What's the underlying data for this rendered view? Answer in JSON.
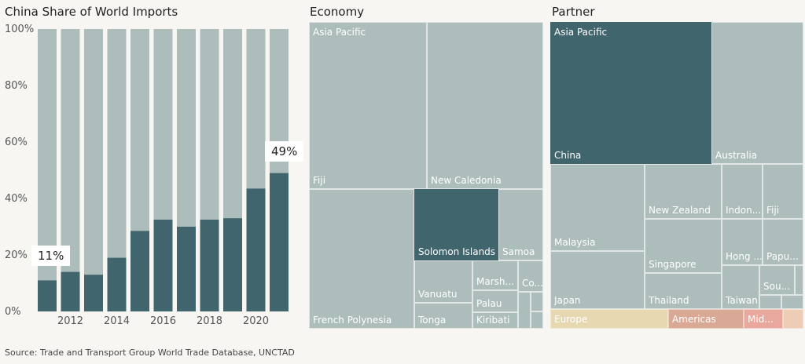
{
  "bar_title": "China Share of World Imports",
  "economy_title": "Economy",
  "partner_title": "Partner",
  "source": "Source: Trade and Transport Group World Trade Database, UNCTAD",
  "colors": {
    "dark": "#41656d",
    "light": "#adbdbb",
    "europe": "#e7d8b2",
    "americas": "#d9a996",
    "middle_east": "#e8a89d"
  },
  "chart_data": [
    {
      "type": "bar",
      "title": "China Share of World Imports",
      "x": [
        2011,
        2012,
        2013,
        2014,
        2015,
        2016,
        2017,
        2018,
        2019,
        2020,
        2021
      ],
      "values": [
        11,
        14,
        13,
        19,
        28.5,
        32.5,
        30,
        32.5,
        33,
        43.5,
        49
      ],
      "ylim": [
        0,
        100
      ],
      "yticks": [
        "0%",
        "20%",
        "40%",
        "60%",
        "80%",
        "100%"
      ],
      "xticks": [
        "2012",
        "2014",
        "2016",
        "2018",
        "2020"
      ],
      "stacked_remainder": true,
      "callouts": [
        "11%",
        "49%"
      ]
    },
    {
      "type": "treemap",
      "title": "Economy",
      "labels": [
        "Asia Pacific",
        "Fiji",
        "New Caledonia",
        "French Polynesia",
        "Solomon Islands",
        "Samoa",
        "Vanuatu",
        "Tonga",
        "Marsh...",
        "Palau",
        "Kiribati",
        "Co..."
      ],
      "highlighted": "Solomon Islands"
    },
    {
      "type": "treemap",
      "title": "Partner",
      "labels": [
        "Asia Pacific",
        "China",
        "Australia",
        "New Zealand",
        "Malaysia",
        "Singapore",
        "Japan",
        "Thailand",
        "Indon...",
        "Fiji",
        "Hong ...",
        "Papu...",
        "Sou...",
        "Taiwan",
        "Europe",
        "Americas",
        "Mid..."
      ],
      "highlighted": "China"
    }
  ]
}
